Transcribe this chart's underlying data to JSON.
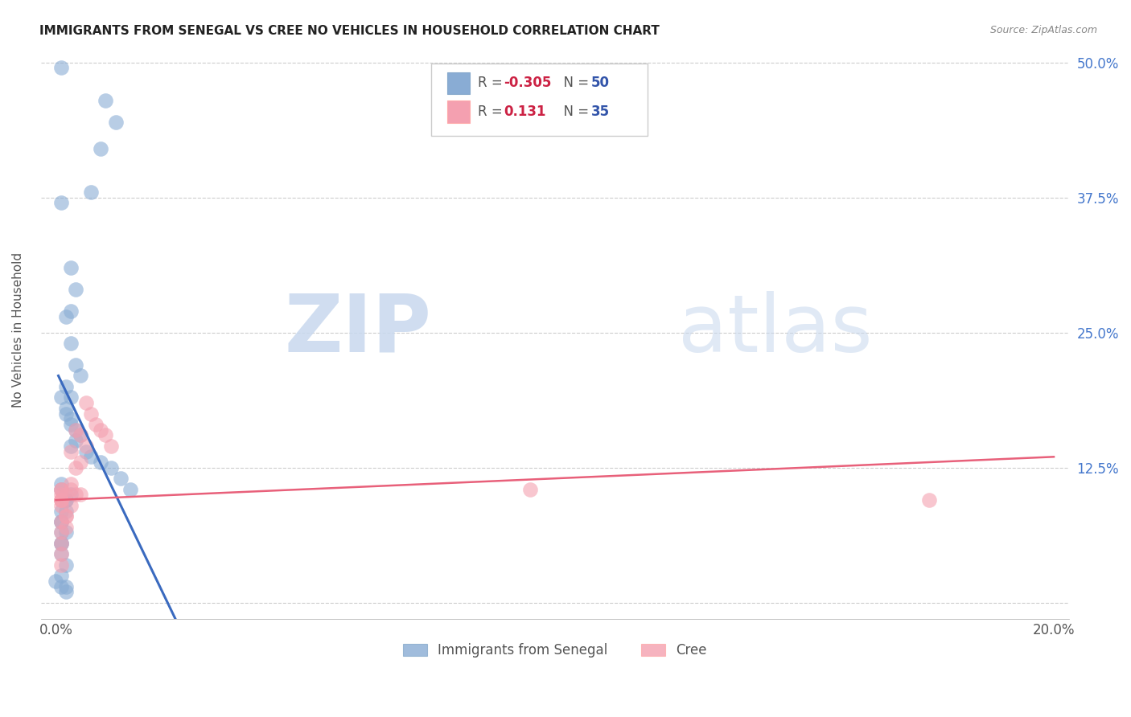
{
  "title": "IMMIGRANTS FROM SENEGAL VS CREE NO VEHICLES IN HOUSEHOLD CORRELATION CHART",
  "source": "Source: ZipAtlas.com",
  "ylabel": "No Vehicles in Household",
  "xlim": [
    0.0,
    0.2
  ],
  "ylim": [
    0.0,
    0.52
  ],
  "xticks": [
    0.0,
    0.05,
    0.1,
    0.15,
    0.2
  ],
  "xticklabels": [
    "0.0%",
    "",
    "",
    "",
    "20.0%"
  ],
  "yticks": [
    0.0,
    0.125,
    0.25,
    0.375,
    0.5
  ],
  "yticklabels_right": [
    "",
    "12.5%",
    "25.0%",
    "37.5%",
    "50.0%"
  ],
  "grid_color": "#cccccc",
  "background_color": "#ffffff",
  "blue_color": "#89acd4",
  "pink_color": "#f4a0b0",
  "blue_line_color": "#3a6abf",
  "pink_line_color": "#e8607a",
  "blue_line_x": [
    0.0005,
    0.025
  ],
  "blue_line_y": [
    0.21,
    -0.025
  ],
  "pink_line_x": [
    0.0,
    0.2
  ],
  "pink_line_y": [
    0.095,
    0.135
  ],
  "senegal_x": [
    0.001,
    0.01,
    0.012,
    0.009,
    0.007,
    0.001,
    0.003,
    0.004,
    0.003,
    0.002,
    0.003,
    0.004,
    0.005,
    0.002,
    0.003,
    0.001,
    0.002,
    0.002,
    0.003,
    0.003,
    0.004,
    0.005,
    0.004,
    0.003,
    0.006,
    0.007,
    0.009,
    0.011,
    0.013,
    0.015,
    0.001,
    0.001,
    0.002,
    0.001,
    0.002,
    0.003,
    0.002,
    0.001,
    0.001,
    0.001,
    0.001,
    0.002,
    0.001,
    0.001,
    0.002,
    0.001,
    0.002,
    0.002,
    0.001,
    0.0
  ],
  "senegal_y": [
    0.495,
    0.465,
    0.445,
    0.42,
    0.38,
    0.37,
    0.31,
    0.29,
    0.27,
    0.265,
    0.24,
    0.22,
    0.21,
    0.2,
    0.19,
    0.19,
    0.18,
    0.175,
    0.17,
    0.165,
    0.16,
    0.155,
    0.15,
    0.145,
    0.14,
    0.135,
    0.13,
    0.125,
    0.115,
    0.105,
    0.11,
    0.105,
    0.095,
    0.085,
    0.095,
    0.1,
    0.085,
    0.075,
    0.065,
    0.055,
    0.075,
    0.065,
    0.055,
    0.045,
    0.035,
    0.025,
    0.015,
    0.01,
    0.015,
    0.02
  ],
  "cree_x": [
    0.001,
    0.001,
    0.001,
    0.001,
    0.002,
    0.003,
    0.004,
    0.005,
    0.003,
    0.007,
    0.008,
    0.009,
    0.01,
    0.011,
    0.006,
    0.001,
    0.001,
    0.001,
    0.002,
    0.001,
    0.003,
    0.004,
    0.005,
    0.003,
    0.002,
    0.002,
    0.001,
    0.001,
    0.001,
    0.001,
    0.095,
    0.004,
    0.005,
    0.006,
    0.175
  ],
  "cree_y": [
    0.105,
    0.105,
    0.095,
    0.095,
    0.1,
    0.11,
    0.125,
    0.13,
    0.14,
    0.175,
    0.165,
    0.16,
    0.155,
    0.145,
    0.185,
    0.1,
    0.095,
    0.09,
    0.08,
    0.075,
    0.105,
    0.1,
    0.1,
    0.09,
    0.08,
    0.07,
    0.065,
    0.055,
    0.045,
    0.035,
    0.105,
    0.16,
    0.155,
    0.145,
    0.095
  ]
}
